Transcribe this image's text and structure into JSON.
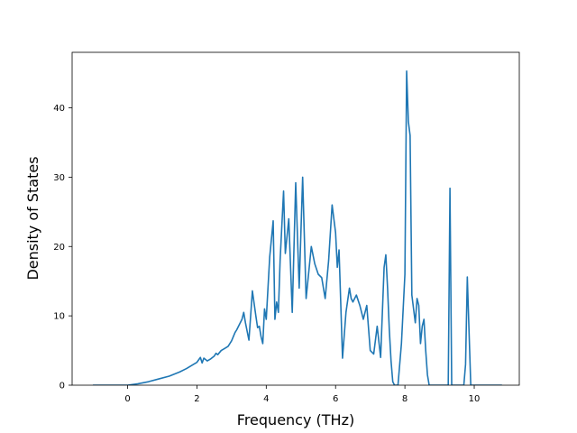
{
  "chart_data": {
    "type": "line",
    "title": "",
    "xlabel": "Frequency (THz)",
    "ylabel": "Density of States",
    "xlim": [
      -1.6,
      11.3
    ],
    "ylim": [
      0,
      48
    ],
    "xticks": [
      0,
      2,
      4,
      6,
      8,
      10
    ],
    "yticks": [
      0,
      10,
      20,
      30,
      40
    ],
    "grid": false,
    "legend": "none",
    "colors": {
      "line": "#1f77b4",
      "axes": "#000000",
      "background": "#ffffff"
    },
    "series": [
      {
        "x": [
          -1.0,
          -0.5,
          0.0,
          0.3,
          0.6,
          0.9,
          1.2,
          1.5,
          1.7,
          1.9,
          2.0,
          2.1,
          2.15,
          2.2,
          2.3,
          2.4,
          2.5,
          2.55,
          2.6,
          2.7,
          2.8,
          2.9,
          3.0,
          3.1,
          3.15,
          3.2,
          3.3,
          3.35,
          3.4,
          3.5,
          3.55,
          3.6,
          3.7,
          3.75,
          3.8,
          3.85,
          3.9,
          3.95,
          4.0,
          4.1,
          4.2,
          4.25,
          4.3,
          4.35,
          4.4,
          4.5,
          4.55,
          4.65,
          4.75,
          4.85,
          4.95,
          5.05,
          5.15,
          5.3,
          5.4,
          5.5,
          5.6,
          5.7,
          5.8,
          5.9,
          6.0,
          6.05,
          6.1,
          6.2,
          6.3,
          6.4,
          6.45,
          6.5,
          6.6,
          6.7,
          6.8,
          6.9,
          7.0,
          7.1,
          7.2,
          7.3,
          7.4,
          7.45,
          7.5,
          7.55,
          7.6,
          7.65,
          7.7,
          7.8,
          7.9,
          8.0,
          8.05,
          8.1,
          8.15,
          8.2,
          8.3,
          8.35,
          8.4,
          8.45,
          8.5,
          8.55,
          8.6,
          8.65,
          8.7,
          8.75,
          8.8,
          8.85,
          8.9,
          9.0,
          9.1,
          9.2,
          9.25,
          9.3,
          9.35,
          9.4,
          9.5,
          9.6,
          9.7,
          9.75,
          9.8,
          9.9,
          10.0,
          10.5,
          10.8
        ],
        "y": [
          0,
          0,
          0,
          0.2,
          0.5,
          0.9,
          1.3,
          1.9,
          2.4,
          3.0,
          3.3,
          4.0,
          3.2,
          3.9,
          3.5,
          3.8,
          4.2,
          4.6,
          4.4,
          5.0,
          5.3,
          5.6,
          6.4,
          7.6,
          8.0,
          8.5,
          9.5,
          10.5,
          9.0,
          6.5,
          10.0,
          13.6,
          10.0,
          8.3,
          8.5,
          7.0,
          6.0,
          11.0,
          9.5,
          18.5,
          23.7,
          9.5,
          12.0,
          10.5,
          18.0,
          28.0,
          19.0,
          24.0,
          10.5,
          29.2,
          14.0,
          30.0,
          12.5,
          20.0,
          17.5,
          16.0,
          15.5,
          12.5,
          18.0,
          26.0,
          22.0,
          17.0,
          19.5,
          3.9,
          10.5,
          14.0,
          12.5,
          12.0,
          13.0,
          11.5,
          9.5,
          11.5,
          5.0,
          4.5,
          8.5,
          4.0,
          17.0,
          18.8,
          14.0,
          8.0,
          3.5,
          0.5,
          0,
          0,
          6.0,
          16.0,
          45.3,
          38.0,
          36.0,
          13.0,
          9.0,
          12.5,
          11.5,
          6.0,
          8.5,
          9.5,
          5.0,
          1.5,
          0,
          0,
          0,
          0,
          0,
          0,
          0,
          0,
          0,
          28.4,
          0,
          0,
          0,
          0,
          0,
          3.0,
          15.6,
          0,
          0,
          0,
          0
        ]
      }
    ]
  }
}
